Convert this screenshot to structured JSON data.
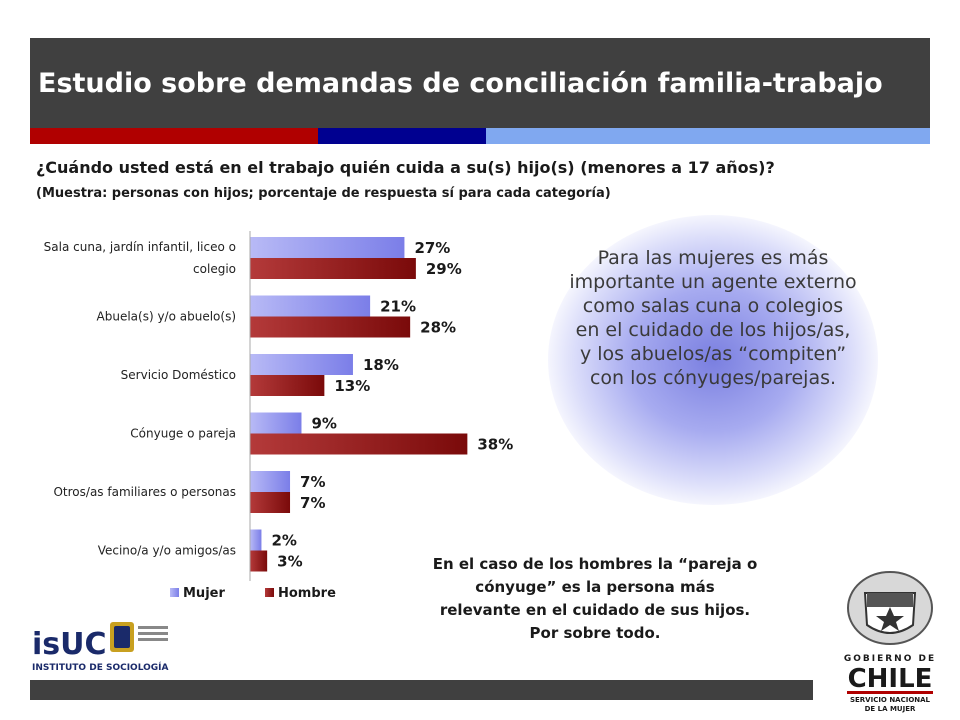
{
  "header": {
    "title": "Estudio sobre demandas de conciliación familia-trabajo",
    "stripe_colors": [
      "#b00000",
      "#000090",
      "#80a8f0"
    ]
  },
  "question": "¿Cuándo usted está en el trabajo quién cuida a su(s) hijo(s) (menores a 17 años)?",
  "sample_note": "(Muestra: personas con hijos; porcentaje de respuesta sí para cada categoría)",
  "chart_data": {
    "type": "bar",
    "orientation": "horizontal",
    "categories": [
      "Sala cuna, jardín infantil, liceo o colegio",
      "Abuela(s) y/o abuelo(s)",
      "Servicio Doméstico",
      "Cónyuge o pareja",
      "Otros/as familiares o personas",
      "Vecino/a y/o amigos/as"
    ],
    "category_lines": [
      [
        "Sala cuna, jardín infantil, liceo o",
        "colegio"
      ],
      [
        "Abuela(s) y/o abuelo(s)"
      ],
      [
        "Servicio Doméstico"
      ],
      [
        "Cónyuge o pareja"
      ],
      [
        "Otros/as familiares o personas"
      ],
      [
        "Vecino/a y/o amigos/as"
      ]
    ],
    "series": [
      {
        "name": "Mujer",
        "values": [
          27,
          21,
          18,
          9,
          7,
          2
        ],
        "labels": [
          "27%",
          "21%",
          "18%",
          "9%",
          "7%",
          "2%"
        ],
        "color": "#7b7ee8"
      },
      {
        "name": "Hombre",
        "values": [
          29,
          28,
          13,
          38,
          7,
          3
        ],
        "labels": [
          "29%",
          "28%",
          "13%",
          "38%",
          "7%",
          "3%"
        ],
        "color": "#7a0a0a"
      }
    ],
    "xlim": [
      0,
      40
    ],
    "legend_position": "bottom",
    "grid": false
  },
  "notes": {
    "women": "Para las mujeres es más importante un agente externo como salas cuna o colegios en el cuidado de los hijos/as, y los abuelos/as “compiten” con los cónyuges/parejas.",
    "men_lines": [
      "En el caso de los hombres la “pareja o",
      "cónyuge” es la persona más",
      "relevante en el cuidado de sus hijos.",
      "Por sobre todo."
    ]
  },
  "logos": {
    "isuc_name": "isUC",
    "isuc_sub": "INSTITUTO DE SOCIOLOGÍA",
    "gob_top": "GOBIERNO DE",
    "gob_main": "CHILE",
    "gob_sub1": "SERVICIO NACIONAL",
    "gob_sub2": "DE LA MUJER"
  }
}
